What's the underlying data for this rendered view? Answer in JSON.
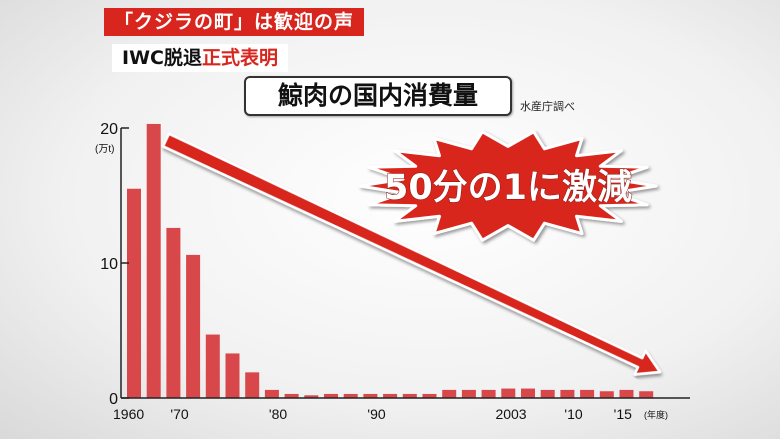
{
  "header": {
    "headline_1": "「クジラの町」は歓迎の声",
    "headline_2_prefix": "IWC脱退",
    "headline_2_emphasis": "正式表明"
  },
  "chart_data": {
    "type": "bar",
    "title": "鯨肉の国内消費量",
    "source": "水産庁調べ",
    "ylabel": "(万t)",
    "xlabel": "(年度)",
    "ylim": [
      0,
      20
    ],
    "y_ticks": [
      {
        "value": 0,
        "label": "0"
      },
      {
        "value": 10,
        "label": "10"
      },
      {
        "value": 20,
        "label": "20"
      }
    ],
    "x_tick_labels": [
      {
        "year": 1960,
        "label": "1960"
      },
      {
        "year": 1970,
        "label": "'70"
      },
      {
        "year": 1980,
        "label": "'80"
      },
      {
        "year": 1990,
        "label": "'90"
      },
      {
        "year": 2003,
        "label": "2003"
      },
      {
        "year": 2010,
        "label": "'10"
      },
      {
        "year": 2015,
        "label": "'15"
      }
    ],
    "x": [
      1966,
      1968,
      1970,
      1972,
      1974,
      1976,
      1978,
      1980,
      1982,
      1984,
      1986,
      1988,
      1990,
      1992,
      1994,
      1996,
      1998,
      2000,
      2002,
      2004,
      2006,
      2008,
      2010,
      2012,
      2014,
      2016,
      2018
    ],
    "values": [
      15.5,
      20.3,
      12.6,
      10.6,
      4.7,
      3.3,
      1.9,
      0.6,
      0.3,
      0.2,
      0.3,
      0.3,
      0.3,
      0.3,
      0.3,
      0.3,
      0.6,
      0.6,
      0.6,
      0.7,
      0.7,
      0.6,
      0.6,
      0.6,
      0.5,
      0.6,
      0.5
    ],
    "bar_color": "#d8484a",
    "annotation": {
      "text": "50分の1に激減",
      "color": "#d8261f"
    }
  }
}
